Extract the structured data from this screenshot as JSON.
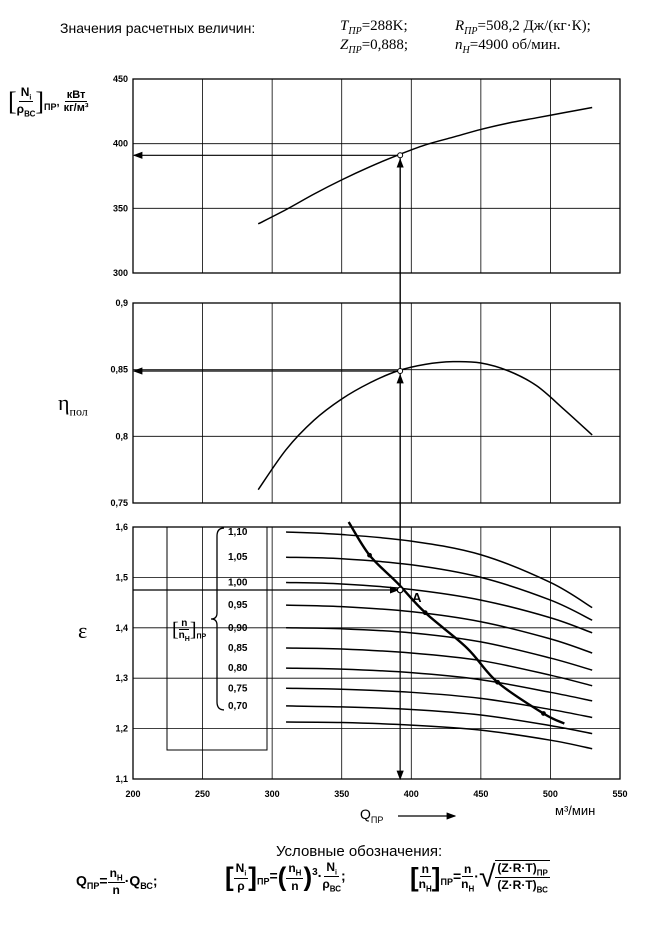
{
  "header": {
    "title": "Значения расчетных величин:",
    "T_sym": "T",
    "T_sub": "ПР",
    "T_val": "=288K;",
    "R_sym": "R",
    "R_sub": "ПР",
    "R_val": "=508,2 Дж/(кг·К);",
    "Z_sym": "Z",
    "Z_sub": "ПР",
    "Z_val": "=0,888;",
    "n_sym": "n",
    "n_sub": "Н",
    "n_val": "=4900 об/мин."
  },
  "chart_data": [
    {
      "type": "line",
      "panel": "power",
      "ylabel": {
        "num": "N",
        "num_sub": "i",
        "den": "ρ",
        "den_sub": "ВС",
        "outer_sub": "ПР",
        "unit_num": "кВт",
        "unit_den": "кг/м³"
      },
      "ylim": [
        300,
        450
      ],
      "yticks": [
        "450",
        "400",
        "350",
        "300"
      ],
      "xlim": [
        200,
        550
      ],
      "grid": true,
      "series": [
        {
          "points": [
            [
              290,
              338
            ],
            [
              310,
              349
            ],
            [
              330,
              361
            ],
            [
              350,
              372
            ],
            [
              370,
              382
            ],
            [
              390,
              391
            ],
            [
              410,
              399
            ],
            [
              430,
              405
            ],
            [
              450,
              411
            ],
            [
              470,
              416
            ],
            [
              490,
              420
            ],
            [
              510,
              424
            ],
            [
              530,
              428
            ]
          ]
        }
      ]
    },
    {
      "type": "line",
      "panel": "efficiency",
      "ylabel": {
        "sym": "η",
        "sub": "пол"
      },
      "ylim": [
        0.75,
        0.9
      ],
      "yticks": [
        "0,9",
        "0,85",
        "0,8",
        "0,75"
      ],
      "xlim": [
        200,
        550
      ],
      "grid": true,
      "series": [
        {
          "points": [
            [
              290,
              0.76
            ],
            [
              310,
              0.79
            ],
            [
              330,
              0.812
            ],
            [
              350,
              0.828
            ],
            [
              370,
              0.84
            ],
            [
              390,
              0.849
            ],
            [
              410,
              0.854
            ],
            [
              430,
              0.856
            ],
            [
              450,
              0.855
            ],
            [
              470,
              0.849
            ],
            [
              490,
              0.838
            ],
            [
              510,
              0.82
            ],
            [
              530,
              0.801
            ]
          ]
        }
      ]
    },
    {
      "type": "line",
      "panel": "pressure_ratio",
      "ylabel": {
        "sym": "ε"
      },
      "ylim": [
        1.1,
        1.6
      ],
      "yticks": [
        "1,6",
        "1,5",
        "1,4",
        "1,3",
        "1,2",
        "1,1"
      ],
      "xticks": [
        "200",
        "250",
        "300",
        "350",
        "400",
        "450",
        "500",
        "550"
      ],
      "xlim": [
        200,
        550
      ],
      "xlabel": {
        "sym": "Q",
        "sub": "ПР"
      },
      "xunit": "м³/мин",
      "grid": true,
      "legend_label": {
        "num": "n",
        "den": "n",
        "den_sub": "Н",
        "outer_sub": "ПР"
      },
      "series": [
        {
          "name": "1,10",
          "points": [
            [
              310,
              1.59
            ],
            [
              350,
              1.585
            ],
            [
              400,
              1.572
            ],
            [
              450,
              1.545
            ],
            [
              500,
              1.49
            ],
            [
              530,
              1.44
            ]
          ]
        },
        {
          "name": "1,05",
          "points": [
            [
              310,
              1.54
            ],
            [
              350,
              1.537
            ],
            [
              400,
              1.525
            ],
            [
              450,
              1.5
            ],
            [
              500,
              1.455
            ],
            [
              530,
              1.415
            ]
          ]
        },
        {
          "name": "1,00",
          "points": [
            [
              310,
              1.49
            ],
            [
              350,
              1.487
            ],
            [
              400,
              1.476
            ],
            [
              450,
              1.455
            ],
            [
              500,
              1.42
            ],
            [
              530,
              1.39
            ]
          ]
        },
        {
          "name": "0,95",
          "points": [
            [
              310,
              1.445
            ],
            [
              350,
              1.442
            ],
            [
              400,
              1.432
            ],
            [
              450,
              1.412
            ],
            [
              500,
              1.378
            ],
            [
              530,
              1.35
            ]
          ]
        },
        {
          "name": "0,90",
          "points": [
            [
              310,
              1.4
            ],
            [
              350,
              1.398
            ],
            [
              400,
              1.39
            ],
            [
              450,
              1.372
            ],
            [
              500,
              1.34
            ],
            [
              530,
              1.316
            ]
          ]
        },
        {
          "name": "0,85",
          "points": [
            [
              310,
              1.36
            ],
            [
              350,
              1.358
            ],
            [
              400,
              1.35
            ],
            [
              450,
              1.335
            ],
            [
              500,
              1.306
            ],
            [
              530,
              1.285
            ]
          ]
        },
        {
          "name": "0,80",
          "points": [
            [
              310,
              1.32
            ],
            [
              350,
              1.318
            ],
            [
              400,
              1.311
            ],
            [
              450,
              1.297
            ],
            [
              500,
              1.272
            ],
            [
              530,
              1.255
            ]
          ]
        },
        {
          "name": "0,75",
          "points": [
            [
              310,
              1.28
            ],
            [
              350,
              1.278
            ],
            [
              400,
              1.272
            ],
            [
              450,
              1.26
            ],
            [
              500,
              1.238
            ],
            [
              530,
              1.222
            ]
          ]
        },
        {
          "name": "0,70",
          "points": [
            [
              310,
              1.245
            ],
            [
              350,
              1.243
            ],
            [
              400,
              1.238
            ],
            [
              450,
              1.227
            ],
            [
              500,
              1.206
            ],
            [
              530,
              1.19
            ]
          ]
        },
        {
          "name": "",
          "points": [
            [
              310,
              1.213
            ],
            [
              350,
              1.212
            ],
            [
              400,
              1.207
            ],
            [
              450,
              1.197
            ],
            [
              500,
              1.177
            ],
            [
              530,
              1.16
            ]
          ]
        }
      ],
      "surge_line": {
        "points": [
          [
            355,
            1.61
          ],
          [
            370,
            1.544
          ],
          [
            390,
            1.489
          ],
          [
            410,
            1.43
          ],
          [
            440,
            1.36
          ],
          [
            462,
            1.292
          ],
          [
            495,
            1.23
          ],
          [
            510,
            1.21
          ]
        ],
        "markers": [
          [
            370,
            1.544
          ],
          [
            410,
            1.43
          ],
          [
            462,
            1.292
          ],
          [
            495,
            1.23
          ]
        ]
      },
      "operating_point": {
        "label": "A",
        "x": 392,
        "y": 1.475
      }
    }
  ],
  "legend": {
    "title": "Условные обозначения:",
    "f1": {
      "lhs": "Q",
      "lhs_sub": "ПР",
      "eq": "=",
      "num": "n",
      "num_sub": "Н",
      "den": "n",
      "mid": "·Q",
      "mid_sub": "ВС",
      "end": ";"
    },
    "f2": {
      "num": "N",
      "num_sub": "i",
      "den": "ρ",
      "outer_sub": "ПР",
      "eq": "=",
      "pnum": "n",
      "pnum_sub": "Н",
      "pden": "n",
      "exp": "3",
      "mid": "·",
      "n2": "N",
      "n2_sub": "i",
      "d2": "ρ",
      "d2_sub": "ВС",
      "end": ";"
    },
    "f3": {
      "num": "n",
      "den": "n",
      "den_sub": "Н",
      "outer_sub": "ПР",
      "eq": "=",
      "rnum": "n",
      "rden": "n",
      "rden_sub": "Н",
      "mid": "·",
      "sq_num": "(Z·R·T)",
      "sq_num_sub": "ПР",
      "sq_den": "(Z·R·T)",
      "sq_den_sub": "ВС"
    }
  }
}
